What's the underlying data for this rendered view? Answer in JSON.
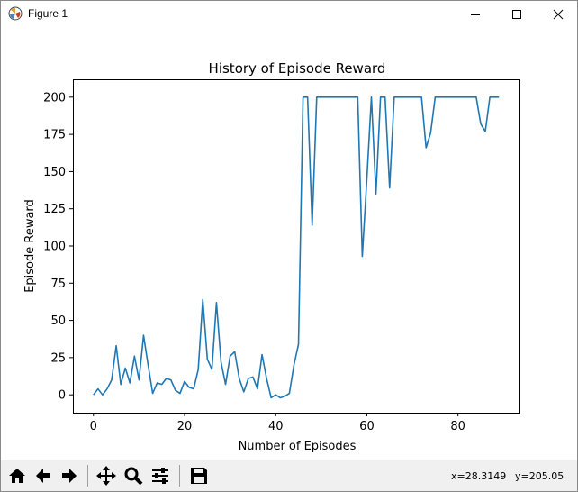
{
  "window": {
    "title": "Figure 1",
    "icon": "matplotlib-figure-icon",
    "controls": [
      "minimize-icon",
      "maximize-icon",
      "close-icon"
    ]
  },
  "toolbar": {
    "buttons": [
      "home-icon",
      "back-icon",
      "forward-icon",
      "pan-icon",
      "zoom-icon",
      "configure-subplots-icon",
      "save-icon"
    ],
    "x_readout": "x=28.3149",
    "y_readout": "y=205.05"
  },
  "colors": {
    "line": "#1f77b4",
    "background": "#ffffff",
    "toolbar": "#f0f0f0"
  },
  "chart_data": {
    "type": "line",
    "title": "History of Episode Reward",
    "xlabel": "Number of Episodes",
    "ylabel": "Episode Reward",
    "xlim": [
      -4.5,
      93.5
    ],
    "ylim": [
      -12,
      212
    ],
    "xticks": [
      0,
      20,
      40,
      60,
      80
    ],
    "yticks": [
      0,
      25,
      50,
      75,
      100,
      125,
      150,
      175,
      200
    ],
    "grid": false,
    "legend": "none",
    "series": [
      {
        "x": [
          0,
          1,
          2,
          3,
          4,
          5,
          6,
          7,
          8,
          9,
          10,
          11,
          12,
          13,
          14,
          15,
          16,
          17,
          18,
          19,
          20,
          21,
          22,
          23,
          24,
          25,
          26,
          27,
          28,
          29,
          30,
          31,
          32,
          33,
          34,
          35,
          36,
          37,
          38,
          39,
          40,
          41,
          42,
          43,
          44,
          45,
          46,
          47,
          48,
          49,
          50,
          51,
          52,
          53,
          54,
          55,
          56,
          57,
          58,
          59,
          60,
          61,
          62,
          63,
          64,
          65,
          66,
          67,
          68,
          69,
          70,
          71,
          72,
          73,
          74,
          75,
          76,
          77,
          78,
          79,
          80,
          81,
          82,
          83,
          84,
          85,
          86,
          87,
          88,
          89
        ],
        "y": [
          0,
          4,
          0,
          4,
          10,
          33,
          7,
          18,
          8,
          26,
          10,
          40,
          20,
          1,
          8,
          7,
          11,
          10,
          3,
          1,
          9,
          5,
          4,
          17,
          64,
          24,
          17,
          62,
          22,
          7,
          26,
          29,
          11,
          2,
          11,
          12,
          4,
          27,
          11,
          -2,
          0,
          -2,
          -1,
          1,
          20,
          34,
          200,
          200,
          114,
          200,
          200,
          200,
          200,
          200,
          200,
          200,
          200,
          200,
          200,
          93,
          145,
          200,
          135,
          200,
          200,
          139,
          200,
          200,
          200,
          200,
          200,
          200,
          200,
          166,
          176,
          200,
          200,
          200,
          200,
          200,
          200,
          200,
          200,
          200,
          200,
          182,
          177,
          200,
          200,
          200
        ]
      }
    ]
  }
}
